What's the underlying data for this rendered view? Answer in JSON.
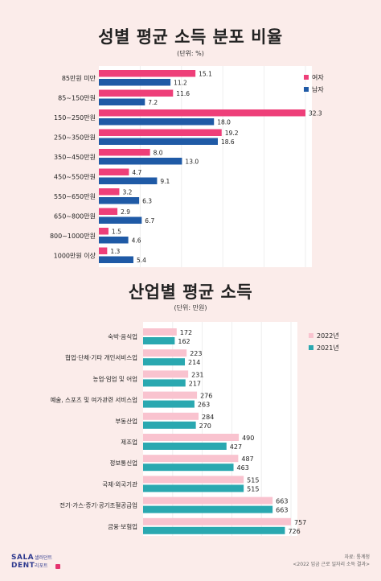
{
  "chart1": {
    "title": "성별 평균 소득 분포 비율",
    "unit": "(단위: %)"
  },
  "chart2": {
    "title": "산업별 평균 소득",
    "unit": "(단위: 만원)"
  },
  "brand": {
    "line1": "SALA",
    "line2": "DENT",
    "korean1": "샐러던트",
    "korean2": "리포트"
  },
  "source": {
    "line1": "자료: 통계청",
    "line2": "<2022 임금 근로 일자리 소득 결과>"
  },
  "colors": {
    "female": "#ee3f79",
    "male": "#1f5aa6",
    "y2022": "#f9c3cf",
    "y2021": "#2aa8b0"
  },
  "chart_data": [
    {
      "type": "bar",
      "orientation": "horizontal",
      "title": "성별 평균 소득 분포 비율",
      "unit": "(단위: %)",
      "categories": [
        "85만원 미만",
        "85~150만원",
        "150~250만원",
        "250~350만원",
        "350~450만원",
        "450~550만원",
        "550~650만원",
        "650~800만원",
        "800~1000만원",
        "1000만원 이상"
      ],
      "series": [
        {
          "name": "여자",
          "values": [
            15.1,
            11.6,
            32.3,
            19.2,
            8.0,
            4.7,
            3.2,
            2.9,
            1.5,
            1.3
          ]
        },
        {
          "name": "남자",
          "values": [
            11.2,
            7.2,
            18.0,
            18.6,
            13.0,
            9.1,
            6.3,
            6.7,
            4.6,
            5.4
          ]
        }
      ],
      "value_labels": {
        "여자": [
          "15.1",
          "11.6",
          "32.3",
          "19.2",
          "8.0",
          "4.7",
          "3.2",
          "2.9",
          "1.5",
          "1.3"
        ],
        "남자": [
          "11.2",
          "7.2",
          "18.0",
          "18.6",
          "13.0",
          "9.1",
          "6.3",
          "6.7",
          "4.6",
          "5.4"
        ]
      },
      "xlim": [
        0,
        32.3
      ],
      "grid": true,
      "legend": "top-right"
    },
    {
      "type": "bar",
      "orientation": "horizontal",
      "title": "산업별 평균 소득",
      "unit": "(단위: 만원)",
      "categories": [
        "숙박·음식업",
        "협업·단체·기타 개인서비스업",
        "농업·임업 및 어업",
        "예술, 스포츠 및 여가관련 서비스업",
        "부동산업",
        "제조업",
        "정보통신업",
        "국제·외국기관",
        "전기·가스·증기·공기조절공급업",
        "금융·보험업"
      ],
      "series": [
        {
          "name": "2022년",
          "values": [
            172,
            223,
            231,
            276,
            284,
            490,
            487,
            515,
            663,
            757
          ]
        },
        {
          "name": "2021년",
          "values": [
            162,
            214,
            217,
            263,
            270,
            427,
            463,
            515,
            663,
            726
          ]
        }
      ],
      "value_labels": {
        "2022년": [
          "172",
          "223",
          "231",
          "276",
          "284",
          "490",
          "487",
          "515",
          "663",
          "757"
        ],
        "2021년": [
          "162",
          "214",
          "217",
          "263",
          "270",
          "427",
          "463",
          "515",
          "663",
          "726"
        ]
      },
      "xlim": [
        0,
        757
      ],
      "grid": true,
      "legend": "top-right"
    }
  ]
}
